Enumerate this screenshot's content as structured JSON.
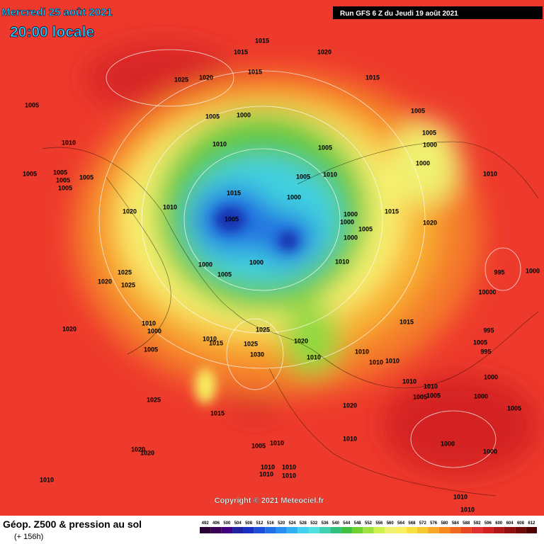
{
  "header": {
    "date": "Mercredi 25 août 2021",
    "time": "20:00 locale",
    "run": "Run GFS 6 Z du Jeudi 19 août 2021"
  },
  "copyright": "Copyright © 2021 Meteociel.fr",
  "legend": {
    "title": "Géop. Z500 & pression au sol",
    "subtitle": "(+ 156h)",
    "scale": [
      492,
      496,
      500,
      504,
      508,
      512,
      516,
      520,
      524,
      528,
      532,
      536,
      540,
      544,
      548,
      552,
      556,
      560,
      564,
      568,
      572,
      576,
      580,
      584,
      588,
      592,
      596,
      600,
      604,
      608,
      612
    ],
    "colors": [
      "#2b0033",
      "#3a0055",
      "#400080",
      "#2020a0",
      "#1830c0",
      "#1c50d8",
      "#2070e8",
      "#2890f0",
      "#30b0f0",
      "#40d0f0",
      "#50e0e0",
      "#40d0b0",
      "#30c080",
      "#40c040",
      "#70d030",
      "#a0e040",
      "#d0f050",
      "#f0f070",
      "#f8f060",
      "#f8e040",
      "#f8c830",
      "#f8a828",
      "#f88820",
      "#f06820",
      "#e84820",
      "#e03030",
      "#d02020",
      "#b01818",
      "#901010",
      "#700808",
      "#500000"
    ]
  },
  "isobar_labels": [
    "1015",
    "1015",
    "1020",
    "1025",
    "1020",
    "1015",
    "1015",
    "1005",
    "1005",
    "1000",
    "1005",
    "1005",
    "1010",
    "1005",
    "1000",
    "1010",
    "1005",
    "1005",
    "1005",
    "1005",
    "1005",
    "1005",
    "1010",
    "1000",
    "1010",
    "1015",
    "1000",
    "1010",
    "1020",
    "1005",
    "1015",
    "1000",
    "1000",
    "1005",
    "1000",
    "1020",
    "1000",
    "1000",
    "1005",
    "1010",
    "1025",
    "1020",
    "1025",
    "995",
    "1000",
    "10000",
    "1010",
    "1000",
    "1020",
    "1025",
    "1010",
    "1015",
    "1025",
    "1030",
    "1020",
    "1015",
    "995",
    "1005",
    "995",
    "1005",
    "1010",
    "1010",
    "1010",
    "1010",
    "1000",
    "1010",
    "1010",
    "1005",
    "1005",
    "1000",
    "1025",
    "1015",
    "1020",
    "1005",
    "1010",
    "1010",
    "1005",
    "1000",
    "1000",
    "1020",
    "1020",
    "1010",
    "1010",
    "1010",
    "1010",
    "1010",
    "1010",
    "1010"
  ]
}
